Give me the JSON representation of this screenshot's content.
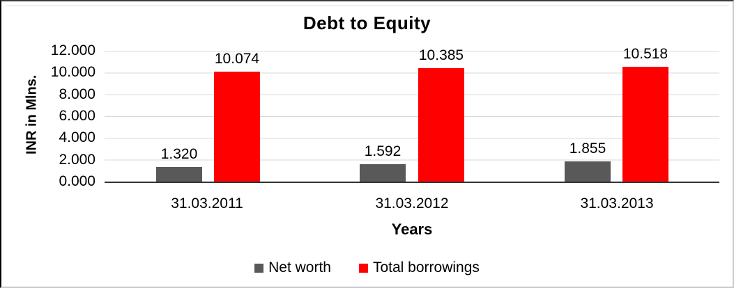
{
  "window": {
    "background": "#ffffff",
    "border_left_color": "#000000",
    "border_top_color": "#3a3a3a",
    "border_right_color": "#c9c9c9",
    "border_bottom_color": "#c9c9c9"
  },
  "chart_data": {
    "type": "bar",
    "title": "Debt to Equity",
    "xlabel": "Years",
    "ylabel": "INR in Mlns.",
    "categories": [
      "31.03.2011",
      "31.03.2012",
      "31.03.2013"
    ],
    "series": [
      {
        "name": "Net worth",
        "color": "#595959",
        "values": [
          1320,
          1592,
          1855
        ],
        "value_labels": [
          "1.320",
          "1.592",
          "1.855"
        ]
      },
      {
        "name": "Total borrowings",
        "color": "#ff0000",
        "values": [
          10074,
          10385,
          10518
        ],
        "value_labels": [
          "10.074",
          "10.385",
          "10.518"
        ]
      }
    ],
    "ylim": [
      0,
      12000
    ],
    "ytick_step": 2000,
    "ytick_labels": [
      "12.000",
      "10.000",
      "8.000",
      "6.000",
      "4.000",
      "2.000",
      "0.000"
    ],
    "grid": "horizontal",
    "gridline_color": "#d9d9d9",
    "axis_line_color": "#333333",
    "legend_position": "bottom"
  }
}
